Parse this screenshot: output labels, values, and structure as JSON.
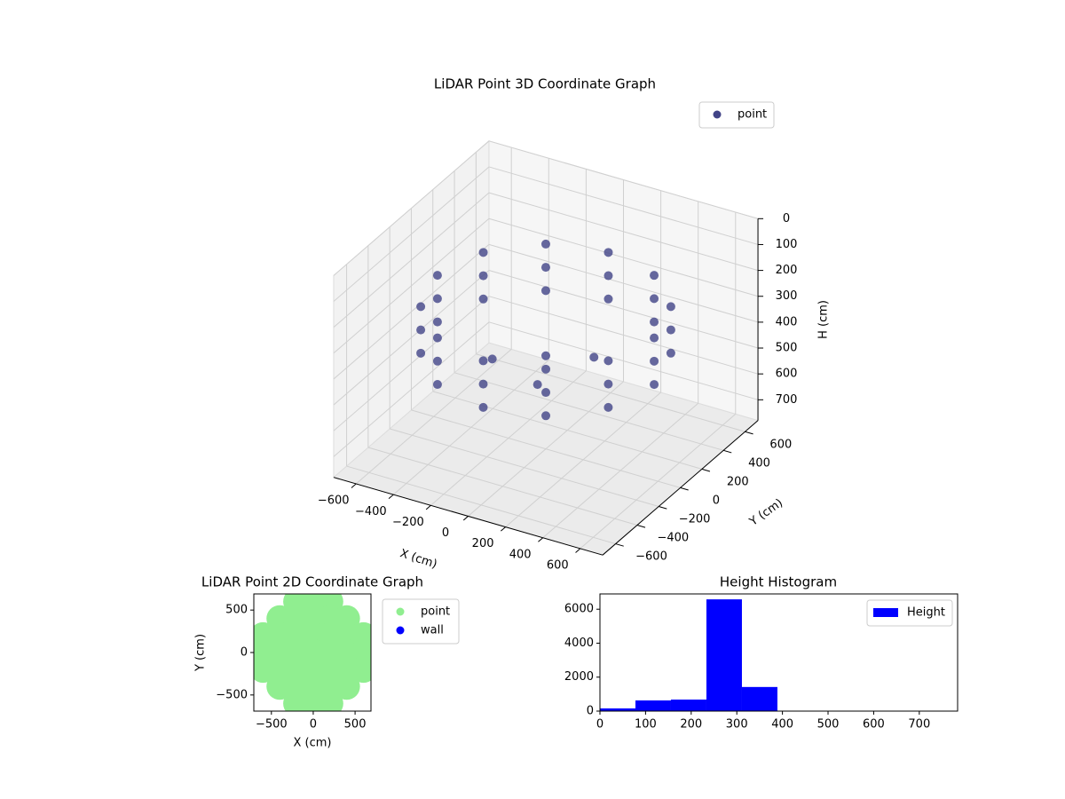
{
  "chart_data": [
    {
      "type": "scatter3d",
      "title": "LiDAR Point 3D Coordinate Graph",
      "x_label": "X (cm)",
      "y_label": "Y (cm)",
      "z_label": "H (cm)",
      "xlim": [
        -720,
        720
      ],
      "ylim": [
        -720,
        720
      ],
      "zlim": [
        0,
        780
      ],
      "z_inverted": true,
      "xticks": [
        {
          "value": -600,
          "label": "−600"
        },
        {
          "value": -400,
          "label": "−400"
        },
        {
          "value": -200,
          "label": "−200"
        },
        0,
        200,
        400,
        600
      ],
      "yticks": [
        {
          "value": -600,
          "label": "−600"
        },
        {
          "value": -400,
          "label": "−400"
        },
        {
          "value": -200,
          "label": "−200"
        },
        0,
        200,
        400,
        600
      ],
      "zticks": [
        0,
        100,
        200,
        300,
        400,
        500,
        600,
        700
      ],
      "grid": true,
      "legend": "upper right",
      "series": [
        {
          "name": "point",
          "color": "#414487",
          "x": [
            580,
            502,
            290,
            0,
            -290,
            -502,
            -580,
            -502,
            -290,
            0,
            290,
            502,
            580,
            502,
            290,
            0,
            -290,
            -502,
            -580,
            -502,
            -290,
            0,
            290,
            502,
            580,
            502,
            290,
            0,
            -290,
            -502,
            -580,
            -502,
            -290,
            0,
            290,
            502,
            0,
            200,
            -200,
            100
          ],
          "y": [
            0,
            290,
            502,
            580,
            502,
            290,
            0,
            -290,
            -502,
            -580,
            -502,
            -290,
            0,
            290,
            502,
            580,
            502,
            290,
            0,
            -290,
            -502,
            -580,
            -502,
            -290,
            0,
            290,
            502,
            580,
            502,
            290,
            0,
            -290,
            -502,
            -580,
            -502,
            -290,
            0,
            100,
            -150,
            -250
          ],
          "z": [
            230,
            230,
            230,
            230,
            230,
            230,
            230,
            230,
            230,
            230,
            230,
            230,
            320,
            320,
            320,
            320,
            320,
            320,
            320,
            320,
            320,
            320,
            320,
            320,
            410,
            410,
            410,
            410,
            410,
            410,
            410,
            410,
            410,
            410,
            410,
            410,
            420,
            420,
            420,
            420
          ]
        }
      ]
    },
    {
      "type": "scatter",
      "title": "LiDAR Point 2D Coordinate Graph",
      "x_label": "X (cm)",
      "y_label": "Y (cm)",
      "xlim": [
        -710,
        690
      ],
      "ylim": [
        -690,
        690
      ],
      "xticks": [
        {
          "value": -500,
          "label": "−500"
        },
        0,
        500
      ],
      "yticks": [
        {
          "value": -500,
          "label": "−500"
        },
        0,
        500
      ],
      "legend": "outside right",
      "series": [
        {
          "name": "point",
          "color": "#90ee90",
          "x": [
            -200,
            0,
            200,
            -400,
            -200,
            0,
            200,
            400,
            -600,
            -400,
            -200,
            0,
            200,
            400,
            600,
            -600,
            -400,
            -200,
            0,
            200,
            400,
            600,
            -600,
            -400,
            -200,
            0,
            200,
            400,
            600,
            -400,
            -200,
            0,
            200,
            400,
            -200,
            0,
            200
          ],
          "y": [
            600,
            600,
            600,
            400,
            400,
            400,
            400,
            400,
            200,
            200,
            200,
            200,
            200,
            200,
            200,
            0,
            0,
            0,
            0,
            0,
            0,
            0,
            -200,
            -200,
            -200,
            -200,
            -200,
            -200,
            -200,
            -400,
            -400,
            -400,
            -400,
            -400,
            -600,
            -600,
            -600
          ]
        },
        {
          "name": "wall",
          "color": "#0000ff",
          "x": [],
          "y": []
        }
      ]
    },
    {
      "type": "histogram",
      "title": "Height Histogram",
      "bins": [
        0,
        77.8,
        155.6,
        233.4,
        311.2,
        389,
        466.8,
        544.6,
        622.4,
        700.2,
        778
      ],
      "counts": [
        160,
        630,
        680,
        6580,
        1420,
        0,
        0,
        0,
        0,
        0
      ],
      "xlim": [
        0,
        784
      ],
      "ylim": [
        0,
        6900
      ],
      "xticks": [
        0,
        100,
        200,
        300,
        400,
        500,
        600,
        700
      ],
      "yticks": [
        0,
        2000,
        4000,
        6000
      ],
      "legend": "upper right",
      "series": [
        {
          "name": "Height",
          "color": "#0000ff"
        }
      ]
    }
  ]
}
